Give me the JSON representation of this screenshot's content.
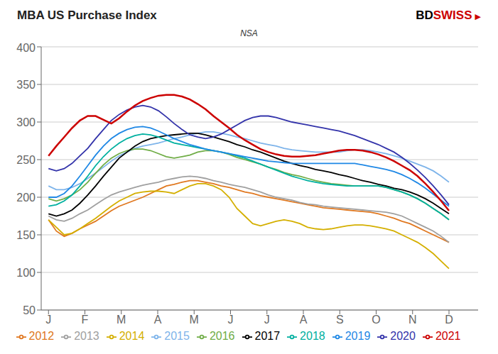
{
  "chart_data": {
    "type": "line",
    "title": "MBA US Purchase Index",
    "subtitle": "NSA",
    "annotations": [
      {
        "text": "BD",
        "color": "#000000"
      },
      {
        "text": "SWISS",
        "color": "#CC0000"
      },
      {
        "text": "▶",
        "color": "#CC0000"
      }
    ],
    "x": [
      0,
      0.2157,
      0.4314,
      0.6471,
      0.8627,
      1.0784,
      1.2941,
      1.5098,
      1.7255,
      1.9412,
      2.1569,
      2.3725,
      2.5882,
      2.8039,
      3.0196,
      3.2353,
      3.451,
      3.6667,
      3.8824,
      4.098,
      4.3137,
      4.5294,
      4.7451,
      4.9608,
      5.1765,
      5.3922,
      5.6078,
      5.8235,
      6.0392,
      6.2549,
      6.4706,
      6.6863,
      6.902,
      7.1176,
      7.3333,
      7.549,
      7.7647,
      7.9804,
      8.1961,
      8.4118,
      8.6275,
      8.8431,
      9.0588,
      9.2745,
      9.4902,
      9.7059,
      9.9216,
      10.1373,
      10.3529,
      10.5686,
      10.7843,
      11
    ],
    "xlim": [
      -0.2,
      11.8
    ],
    "xticks": [
      {
        "value": 0,
        "label": "J"
      },
      {
        "value": 1,
        "label": "F"
      },
      {
        "value": 2,
        "label": "M"
      },
      {
        "value": 3,
        "label": "A"
      },
      {
        "value": 4,
        "label": "M"
      },
      {
        "value": 5,
        "label": "J"
      },
      {
        "value": 6,
        "label": "J"
      },
      {
        "value": 7,
        "label": "A"
      },
      {
        "value": 8,
        "label": "S"
      },
      {
        "value": 9,
        "label": "O"
      },
      {
        "value": 10,
        "label": "N"
      },
      {
        "value": 11,
        "label": "D"
      }
    ],
    "ylim": [
      50,
      400
    ],
    "yticks": [
      50,
      100,
      150,
      200,
      250,
      300,
      350,
      400
    ],
    "grid": true,
    "legend": "bottom",
    "series": [
      {
        "name": "2012",
        "color": "#E07820",
        "values": [
          170,
          155,
          148,
          152,
          158,
          163,
          168,
          175,
          182,
          188,
          192,
          196,
          200,
          205,
          210,
          215,
          217,
          220,
          222,
          222,
          220,
          218,
          215,
          213,
          210,
          207,
          205,
          202,
          200,
          198,
          196,
          194,
          192,
          190,
          188,
          186,
          185,
          184,
          183,
          182,
          181,
          180,
          178,
          175,
          172,
          168,
          165,
          160,
          155,
          150,
          145,
          140
        ]
      },
      {
        "name": "2013",
        "color": "#A0A0A0",
        "values": [
          175,
          170,
          168,
          172,
          178,
          183,
          190,
          197,
          203,
          207,
          210,
          213,
          216,
          218,
          220,
          223,
          225,
          227,
          228,
          227,
          225,
          222,
          220,
          217,
          215,
          213,
          210,
          207,
          203,
          200,
          198,
          196,
          193,
          191,
          190,
          188,
          187,
          186,
          185,
          184,
          183,
          182,
          181,
          180,
          178,
          175,
          170,
          165,
          160,
          155,
          148,
          140
        ]
      },
      {
        "name": "2014",
        "color": "#D4AF00",
        "values": [
          170,
          160,
          150,
          152,
          158,
          165,
          172,
          180,
          188,
          195,
          200,
          205,
          207,
          208,
          208,
          207,
          205,
          210,
          215,
          218,
          218,
          215,
          210,
          200,
          185,
          175,
          165,
          162,
          165,
          168,
          170,
          168,
          165,
          160,
          158,
          157,
          158,
          160,
          162,
          163,
          163,
          162,
          160,
          158,
          155,
          150,
          145,
          140,
          133,
          125,
          115,
          105
        ]
      },
      {
        "name": "2015",
        "color": "#7EB4EA",
        "values": [
          215,
          210,
          210,
          213,
          218,
          225,
          232,
          240,
          248,
          255,
          260,
          265,
          268,
          270,
          272,
          275,
          278,
          280,
          283,
          285,
          287,
          287,
          285,
          283,
          280,
          278,
          275,
          272,
          270,
          268,
          265,
          263,
          262,
          261,
          260,
          260,
          260,
          260,
          262,
          263,
          263,
          262,
          260,
          258,
          255,
          252,
          248,
          244,
          240,
          235,
          228,
          220
        ]
      },
      {
        "name": "2016",
        "color": "#70AD47",
        "values": [
          198,
          195,
          198,
          203,
          210,
          220,
          232,
          243,
          252,
          258,
          262,
          264,
          264,
          262,
          258,
          254,
          252,
          254,
          256,
          260,
          262,
          262,
          260,
          257,
          253,
          250,
          247,
          244,
          240,
          237,
          233,
          230,
          228,
          225,
          222,
          220,
          218,
          217,
          216,
          215,
          215,
          215,
          215,
          213,
          210,
          207,
          203,
          198,
          192,
          185,
          178,
          170
        ]
      },
      {
        "name": "2017",
        "color": "#000000",
        "values": [
          178,
          175,
          178,
          183,
          192,
          203,
          215,
          228,
          240,
          252,
          260,
          268,
          274,
          278,
          280,
          282,
          283,
          284,
          285,
          285,
          283,
          280,
          277,
          274,
          270,
          267,
          263,
          260,
          256,
          252,
          248,
          245,
          242,
          240,
          237,
          235,
          233,
          230,
          228,
          225,
          222,
          220,
          217,
          215,
          212,
          210,
          207,
          203,
          198,
          192,
          185,
          178
        ]
      },
      {
        "name": "2018",
        "color": "#00B0A0",
        "values": [
          188,
          190,
          195,
          203,
          215,
          228,
          242,
          254,
          264,
          272,
          278,
          282,
          284,
          283,
          280,
          276,
          272,
          270,
          268,
          266,
          264,
          262,
          260,
          258,
          255,
          252,
          248,
          244,
          240,
          236,
          232,
          228,
          225,
          222,
          220,
          218,
          217,
          216,
          215,
          215,
          215,
          215,
          215,
          213,
          210,
          207,
          203,
          198,
          192,
          185,
          178,
          170
        ]
      },
      {
        "name": "2019",
        "color": "#1F88E5",
        "values": [
          200,
          200,
          205,
          215,
          228,
          242,
          256,
          268,
          278,
          285,
          290,
          293,
          294,
          292,
          288,
          283,
          278,
          274,
          270,
          267,
          264,
          262,
          260,
          258,
          256,
          254,
          252,
          250,
          248,
          247,
          246,
          245,
          245,
          245,
          245,
          245,
          245,
          245,
          245,
          245,
          243,
          241,
          239,
          237,
          234,
          230,
          225,
          219,
          212,
          204,
          196,
          188
        ]
      },
      {
        "name": "2020",
        "color": "#3333AA",
        "values": [
          238,
          235,
          238,
          245,
          255,
          265,
          278,
          290,
          302,
          310,
          316,
          320,
          322,
          320,
          315,
          307,
          298,
          290,
          283,
          280,
          278,
          280,
          284,
          290,
          296,
          302,
          306,
          308,
          308,
          306,
          303,
          300,
          298,
          296,
          294,
          292,
          290,
          288,
          285,
          282,
          278,
          274,
          270,
          265,
          260,
          253,
          245,
          236,
          226,
          215,
          203,
          190
        ]
      },
      {
        "name": "2021",
        "color": "#CC0000",
        "values": [
          255,
          268,
          280,
          292,
          302,
          308,
          308,
          303,
          298,
          305,
          314,
          322,
          328,
          332,
          335,
          336,
          336,
          334,
          330,
          324,
          317,
          308,
          300,
          292,
          283,
          276,
          270,
          264,
          260,
          257,
          255,
          254,
          254,
          255,
          256,
          258,
          260,
          262,
          263,
          263,
          262,
          260,
          257,
          253,
          248,
          242,
          236,
          228,
          218,
          207,
          195,
          182
        ]
      }
    ]
  }
}
